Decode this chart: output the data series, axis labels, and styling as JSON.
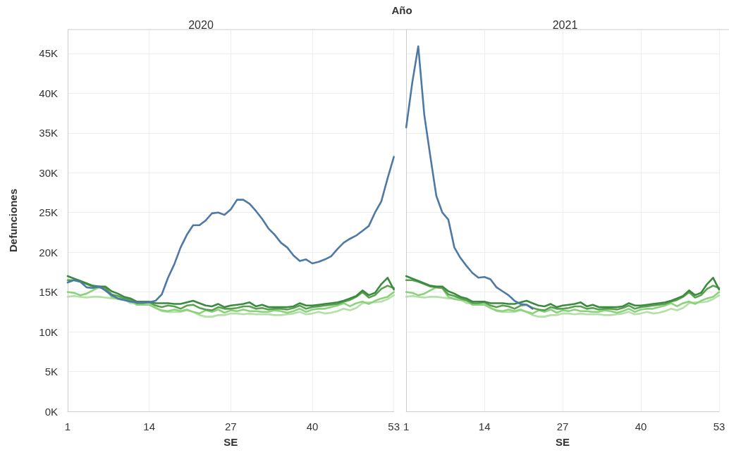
{
  "chart_data": [
    {
      "type": "line",
      "title": "2020",
      "xlabel": "SE",
      "ylabel": "Defunciones",
      "annotations": [
        "Año"
      ],
      "x": [
        1,
        2,
        3,
        4,
        5,
        6,
        7,
        8,
        9,
        10,
        11,
        12,
        13,
        14,
        15,
        16,
        17,
        18,
        19,
        20,
        21,
        22,
        23,
        24,
        25,
        26,
        27,
        28,
        29,
        30,
        31,
        32,
        33,
        34,
        35,
        36,
        37,
        38,
        39,
        40,
        41,
        42,
        43,
        44,
        45,
        46,
        47,
        48,
        49,
        50,
        51,
        52,
        53
      ],
      "xlim": [
        1,
        53
      ],
      "xticks": [
        1,
        14,
        27,
        40,
        53
      ],
      "ylim": [
        0,
        48000
      ],
      "yticks": [
        {
          "value": 0,
          "label": "0K"
        },
        {
          "value": 5000,
          "label": "5K"
        },
        {
          "value": 10000,
          "label": "10K"
        },
        {
          "value": 15000,
          "label": "15K"
        },
        {
          "value": 20000,
          "label": "20K"
        },
        {
          "value": 25000,
          "label": "25K"
        },
        {
          "value": 30000,
          "label": "30K"
        },
        {
          "value": 35000,
          "label": "35K"
        },
        {
          "value": 40000,
          "label": "40K"
        },
        {
          "value": 45000,
          "label": "45K"
        }
      ],
      "grid": true,
      "line_style": "solid",
      "marker": "none",
      "series": [
        {
          "color": "#b3e0a6",
          "values": [
            14400,
            14500,
            14400,
            14300,
            14400,
            14400,
            14300,
            14200,
            14200,
            14100,
            13600,
            13600,
            13400,
            13400,
            13000,
            12600,
            12500,
            12500,
            12500,
            12700,
            12500,
            12100,
            11900,
            11900,
            12100,
            12100,
            12300,
            12300,
            12200,
            12300,
            12200,
            12200,
            12200,
            12100,
            12100,
            12200,
            12300,
            12500,
            12200,
            12300,
            12500,
            12300,
            12400,
            12600,
            12900,
            12700,
            13000,
            13600,
            13700,
            13700,
            13800,
            14100,
            14600
          ]
        },
        {
          "color": "#8cd17d",
          "values": [
            15000,
            14900,
            14600,
            14800,
            15200,
            15600,
            15500,
            14400,
            14100,
            14000,
            13900,
            13400,
            13400,
            13400,
            13000,
            12700,
            12600,
            12800,
            12600,
            12800,
            12500,
            12300,
            12700,
            12500,
            12800,
            12400,
            12700,
            12600,
            12800,
            12600,
            12600,
            12500,
            12500,
            12700,
            12600,
            12400,
            12600,
            12900,
            12500,
            12800,
            12900,
            12900,
            13100,
            13300,
            13600,
            13200,
            13600,
            13800,
            13500,
            13900,
            14200,
            14400,
            15000
          ]
        },
        {
          "color": "#59a14f",
          "values": [
            16500,
            16500,
            16300,
            16000,
            15700,
            15600,
            15500,
            14700,
            14500,
            14200,
            14000,
            13600,
            13600,
            13700,
            13300,
            13100,
            13300,
            13200,
            12900,
            13300,
            13400,
            13000,
            12800,
            12700,
            13100,
            12900,
            12900,
            13000,
            13200,
            13200,
            12900,
            13000,
            12800,
            12900,
            12900,
            12800,
            13000,
            13300,
            12900,
            13100,
            13200,
            13300,
            13400,
            13500,
            13800,
            14000,
            14400,
            15000,
            14300,
            14600,
            15400,
            15800,
            15500
          ]
        },
        {
          "color": "#3a8a3f",
          "values": [
            17000,
            16700,
            16400,
            16100,
            15800,
            15700,
            15700,
            15100,
            14800,
            14400,
            14200,
            13800,
            13800,
            13800,
            13600,
            13600,
            13600,
            13500,
            13500,
            13700,
            13900,
            13600,
            13300,
            13200,
            13500,
            13100,
            13300,
            13400,
            13500,
            13700,
            13200,
            13400,
            13100,
            13100,
            13100,
            13100,
            13200,
            13600,
            13300,
            13300,
            13400,
            13500,
            13600,
            13700,
            13900,
            14200,
            14500,
            15200,
            14600,
            14900,
            16000,
            16800,
            15300
          ]
        },
        {
          "color": "#4e79a7",
          "values": [
            16200,
            16500,
            16300,
            15600,
            15500,
            15700,
            15200,
            14600,
            14200,
            14000,
            13800,
            13700,
            13700,
            13700,
            13900,
            14700,
            16800,
            18500,
            20600,
            22200,
            23400,
            23400,
            24000,
            24900,
            25000,
            24700,
            25400,
            26600,
            26600,
            26100,
            25200,
            24200,
            23000,
            22200,
            21200,
            20600,
            19600,
            18900,
            19100,
            18600,
            18800,
            19100,
            19500,
            20400,
            21200,
            21700,
            22100,
            22700,
            23300,
            25000,
            26400,
            29300,
            32000
          ]
        }
      ]
    },
    {
      "type": "line",
      "title": "2021",
      "xlabel": "SE",
      "tick_labels": "x",
      "x": [
        1,
        2,
        3,
        4,
        5,
        6,
        7,
        8,
        9,
        10,
        11,
        12,
        13,
        14,
        15,
        16,
        17,
        18,
        19,
        20,
        21,
        22,
        23,
        24,
        25,
        26,
        27,
        28,
        29,
        30,
        31,
        32,
        33,
        34,
        35,
        36,
        37,
        38,
        39,
        40,
        41,
        42,
        43,
        44,
        45,
        46,
        47,
        48,
        49,
        50,
        51,
        52,
        53
      ],
      "xlim": [
        1,
        53
      ],
      "xticks": [
        1,
        14,
        27,
        40,
        53
      ],
      "ylim": [
        0,
        48000
      ],
      "yticks": [
        0,
        5000,
        10000,
        15000,
        20000,
        25000,
        30000,
        35000,
        40000,
        45000
      ],
      "grid": true,
      "line_style": "solid",
      "marker": "none",
      "series": [
        {
          "color": "#b3e0a6",
          "values": [
            14400,
            14500,
            14400,
            14300,
            14400,
            14400,
            14300,
            14200,
            14200,
            14100,
            13600,
            13600,
            13400,
            13400,
            13000,
            12600,
            12500,
            12500,
            12500,
            12700,
            12500,
            12100,
            11900,
            11900,
            12100,
            12100,
            12300,
            12300,
            12200,
            12300,
            12200,
            12200,
            12200,
            12100,
            12100,
            12200,
            12300,
            12500,
            12200,
            12300,
            12500,
            12300,
            12400,
            12600,
            12900,
            12700,
            13000,
            13600,
            13700,
            13700,
            13800,
            14100,
            14600
          ]
        },
        {
          "color": "#8cd17d",
          "values": [
            15000,
            14900,
            14600,
            14800,
            15200,
            15600,
            15500,
            14400,
            14100,
            14000,
            13900,
            13400,
            13400,
            13400,
            13000,
            12700,
            12600,
            12800,
            12600,
            12800,
            12500,
            12300,
            12700,
            12500,
            12800,
            12400,
            12700,
            12600,
            12800,
            12600,
            12600,
            12500,
            12500,
            12700,
            12600,
            12400,
            12600,
            12900,
            12500,
            12800,
            12900,
            12900,
            13100,
            13300,
            13600,
            13200,
            13600,
            13800,
            13500,
            13900,
            14200,
            14400,
            15000
          ]
        },
        {
          "color": "#59a14f",
          "values": [
            16500,
            16500,
            16300,
            16000,
            15700,
            15600,
            15500,
            14700,
            14500,
            14200,
            14000,
            13600,
            13600,
            13700,
            13300,
            13100,
            13300,
            13200,
            12900,
            13300,
            13400,
            13000,
            12800,
            12700,
            13100,
            12900,
            12900,
            13000,
            13200,
            13200,
            12900,
            13000,
            12800,
            12900,
            12900,
            12800,
            13000,
            13300,
            12900,
            13100,
            13200,
            13300,
            13400,
            13500,
            13800,
            14000,
            14400,
            15000,
            14300,
            14600,
            15400,
            15800,
            15500
          ]
        },
        {
          "color": "#3a8a3f",
          "values": [
            17000,
            16700,
            16400,
            16100,
            15800,
            15700,
            15700,
            15100,
            14800,
            14400,
            14200,
            13800,
            13800,
            13800,
            13600,
            13600,
            13600,
            13500,
            13500,
            13700,
            13900,
            13600,
            13300,
            13200,
            13500,
            13100,
            13300,
            13400,
            13500,
            13700,
            13200,
            13400,
            13100,
            13100,
            13100,
            13100,
            13200,
            13600,
            13300,
            13300,
            13400,
            13500,
            13600,
            13700,
            13900,
            14200,
            14500,
            15200,
            14600,
            14900,
            16000,
            16800,
            15300
          ]
        },
        {
          "color": "#4e79a7",
          "values": [
            35700,
            41300,
            45900,
            37300,
            32100,
            27100,
            25000,
            24100,
            20600,
            19300,
            18300,
            17400,
            16800,
            16900,
            16600,
            15600,
            15100,
            14600,
            13900,
            13500,
            13400,
            12900,
            null,
            null,
            null,
            null,
            null,
            null,
            null,
            null,
            null,
            null,
            null,
            null,
            null,
            null,
            null,
            null,
            null,
            null,
            null,
            null,
            null,
            null,
            null,
            null,
            null,
            null,
            null,
            null,
            null,
            null,
            null
          ]
        }
      ]
    }
  ]
}
